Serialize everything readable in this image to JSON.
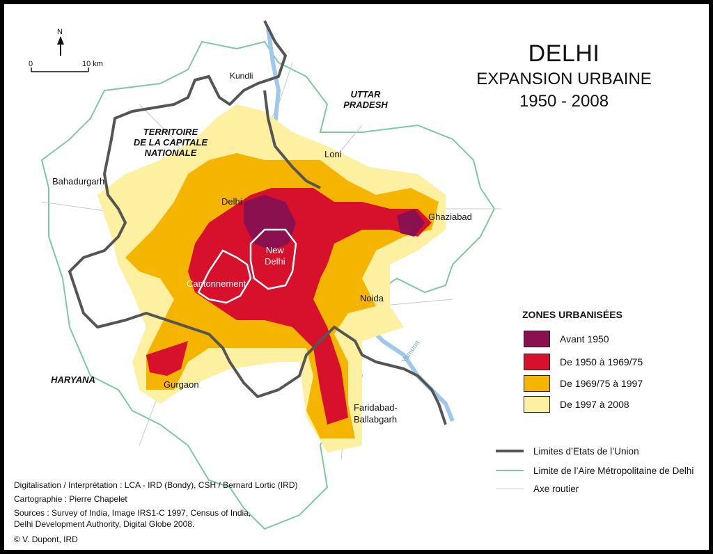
{
  "title": {
    "main": "DELHI",
    "subtitle": "EXPANSION URBAINE",
    "years": "1950 - 2008"
  },
  "north_arrow": {
    "label": "N"
  },
  "scale_bar": {
    "start_label": "0",
    "end_label": "10 km"
  },
  "regions": {
    "nct_line1": "TERRITOIRE",
    "nct_line2": "DE LA CAPITALE",
    "nct_line3": "NATIONALE",
    "up_line1": "UTTAR",
    "up_line2": "PRADESH",
    "haryana": "HARYANA"
  },
  "places": {
    "kundli": "Kundli",
    "loni": "Loni",
    "bahadurgarh": "Bahadurgarh",
    "delhi": "Delhi",
    "ghaziabad": "Ghaziabad",
    "new_delhi_line1": "New",
    "new_delhi_line2": "Delhi",
    "cantonnement": "Cantonnement",
    "noida": "Noida",
    "gurgaon": "Gurgaon",
    "faridabad_line1": "Faridabad-",
    "faridabad_line2": "Ballabgarh",
    "yamuna": "Yamuna"
  },
  "legend": {
    "heading": "ZONES URBANISÉES",
    "zones": [
      {
        "label": "Avant 1950",
        "color": "#8b1050"
      },
      {
        "label": "De 1950 à 1969/75",
        "color": "#d7102c"
      },
      {
        "label": "De 1969/75 à 1997",
        "color": "#f5b400"
      },
      {
        "label": "De 1997 à 2008",
        "color": "#fdf0a0"
      }
    ],
    "lines": [
      {
        "label": "Limites d’Etats de l’Union",
        "color": "#555555"
      },
      {
        "label": "Limite de l’Aire Métropolitaine de Delhi",
        "color": "#7cc9a0"
      },
      {
        "label": "Axe routier",
        "color": "#c8c8c8"
      }
    ]
  },
  "credits": {
    "line1": "Digitalisation / Interprétation : LCA - IRD (Bondy), CSH / Bernard Lortic (IRD)",
    "line2": "Cartographie : Pierre Chapelet",
    "line3": "Sources : Survey of India, Image IRS1-C 1997, Census of India,",
    "line4": "Delhi Development Authority, Digital Globe 2008.",
    "line5": "© V. Dupont, IRD"
  }
}
